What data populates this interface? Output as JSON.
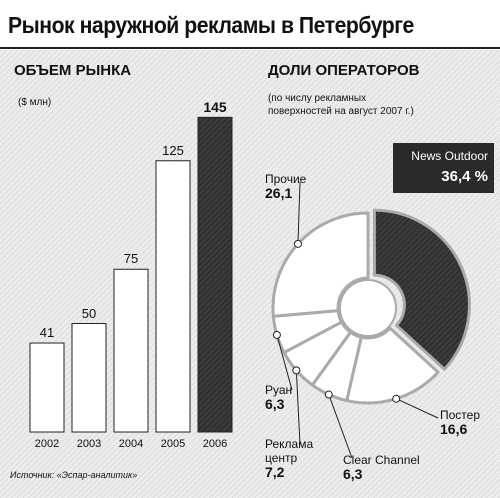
{
  "title": "Рынок наружной рекламы в Петербурге",
  "source": "Источник: «Эспар-аналитик»",
  "chart_data": [
    {
      "type": "bar",
      "title": "ОБЪЕМ РЫНКА",
      "ylabel": "($ млн)",
      "categories": [
        "2002",
        "2003",
        "2004",
        "2005",
        "2006"
      ],
      "values": [
        41,
        50,
        75,
        125,
        145
      ]
    },
    {
      "type": "donut",
      "title": "ДОЛИ ОПЕРАТОРОВ",
      "subtitle": "(по числу рекламных поверхностей на август 2007 г.)",
      "categories": [
        "News Outdoor",
        "Постер",
        "Clear Channel",
        "Реклама центр",
        "Руан",
        "Прочие"
      ],
      "values": [
        36.4,
        16.6,
        6.3,
        7.2,
        6.3,
        26.1
      ],
      "value_labels": [
        "36,4 %",
        "16,6",
        "6,3",
        "7,2",
        "6,3",
        "26,1"
      ]
    }
  ]
}
